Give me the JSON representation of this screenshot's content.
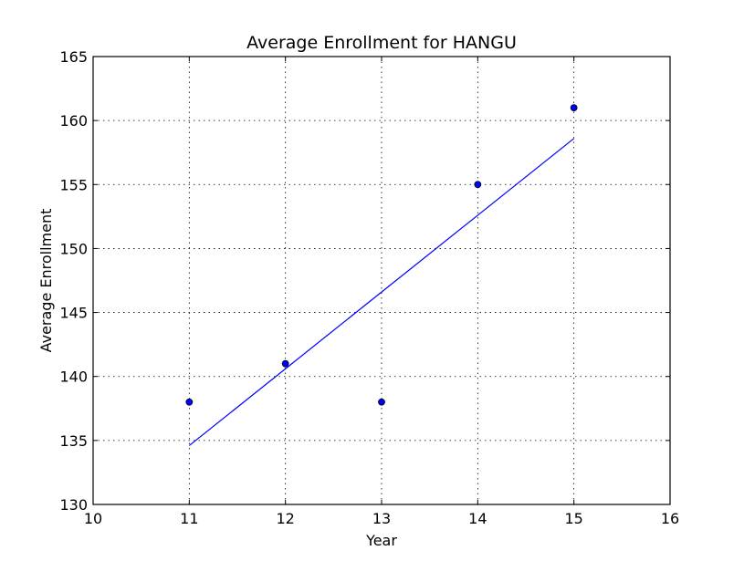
{
  "chart_data": {
    "type": "scatter",
    "title": "Average Enrollment for HANGU",
    "xlabel": "Year",
    "ylabel": "Average Enrollment",
    "xlim": [
      10,
      16
    ],
    "ylim": [
      130,
      165
    ],
    "xticks": [
      10,
      11,
      12,
      13,
      14,
      15,
      16
    ],
    "yticks": [
      130,
      135,
      140,
      145,
      150,
      155,
      160,
      165
    ],
    "grid": true,
    "series": [
      {
        "kind": "scatter",
        "x": [
          11,
          12,
          13,
          14,
          15
        ],
        "y": [
          138,
          141,
          138,
          155,
          161
        ],
        "color": "#0000ff"
      },
      {
        "kind": "line",
        "x": [
          11,
          15
        ],
        "y": [
          134.6,
          158.6
        ],
        "color": "#0000ff"
      }
    ]
  }
}
